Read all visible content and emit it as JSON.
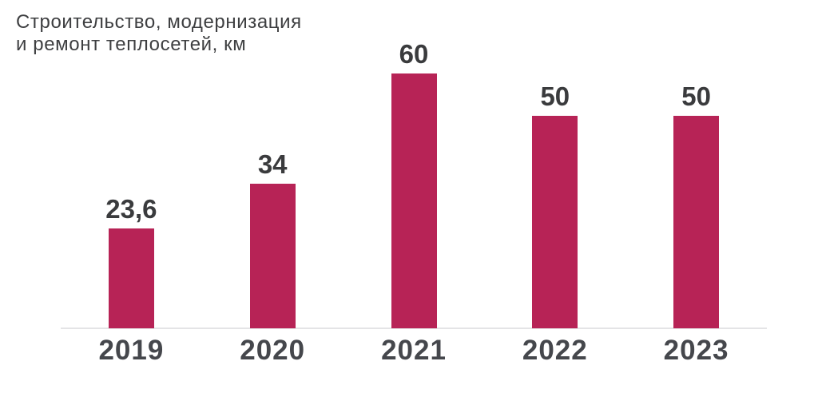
{
  "chart_data": {
    "type": "bar",
    "title": "Строительство, модернизация и ремонт теплосетей, км",
    "title_lines": [
      "Строительство, модернизация",
      "и ремонт теплосетей, км"
    ],
    "categories": [
      "2019",
      "2020",
      "2021",
      "2022",
      "2023"
    ],
    "values": [
      23.6,
      34,
      60,
      50,
      50
    ],
    "value_labels": [
      "23,6",
      "34",
      "60",
      "50",
      "50"
    ],
    "xlabel": "",
    "ylabel": "км",
    "ylim": [
      0,
      60
    ],
    "grid": false,
    "legend": "none",
    "bar_color": "#b72356",
    "value_label_color": "#3a3b3d",
    "tick_label_color": "#45474c",
    "title_color": "#3e3f41",
    "axis_line_color": "#e4e4e6"
  }
}
